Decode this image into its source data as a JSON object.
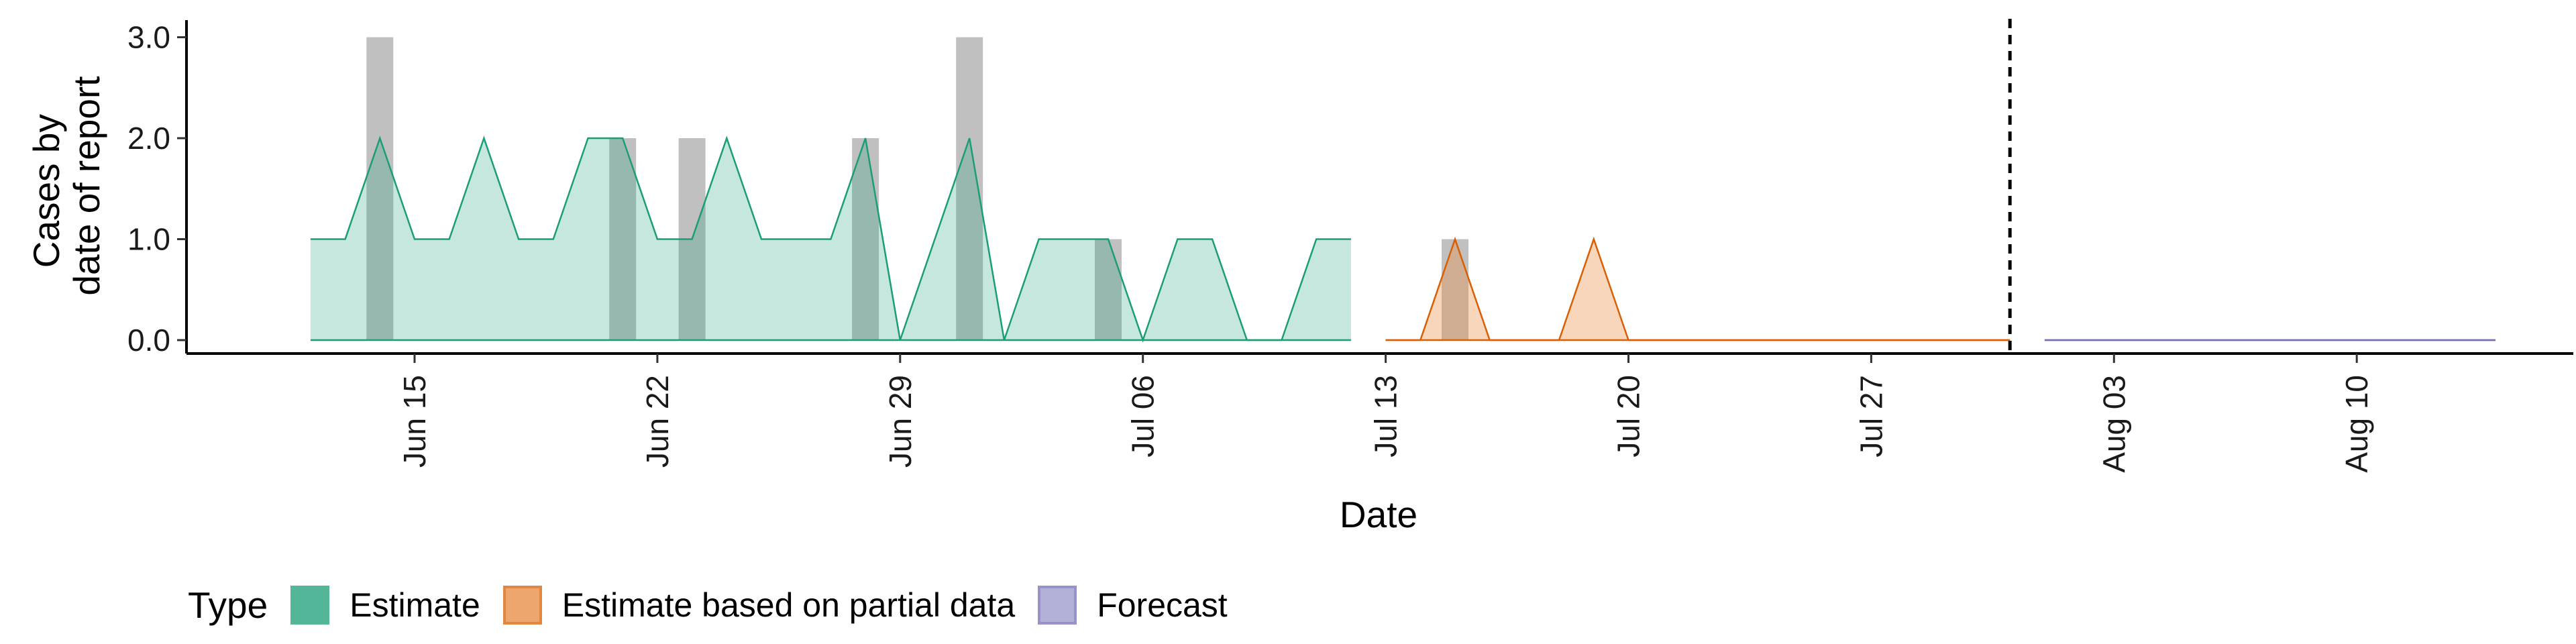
{
  "chart_data": {
    "type": "area",
    "xlabel": "Date",
    "ylabel_lines": [
      "Cases by",
      "date of report"
    ],
    "x_ticks": [
      {
        "date": "2020-06-15",
        "label": "Jun 15"
      },
      {
        "date": "2020-06-22",
        "label": "Jun 22"
      },
      {
        "date": "2020-06-29",
        "label": "Jun 29"
      },
      {
        "date": "2020-07-06",
        "label": "Jul 06"
      },
      {
        "date": "2020-07-13",
        "label": "Jul 13"
      },
      {
        "date": "2020-07-20",
        "label": "Jul 20"
      },
      {
        "date": "2020-07-27",
        "label": "Jul 27"
      },
      {
        "date": "2020-08-03",
        "label": "Aug 03"
      },
      {
        "date": "2020-08-10",
        "label": "Aug 10"
      }
    ],
    "y_ticks": [
      0,
      1,
      2,
      3
    ],
    "y_tick_labels": [
      "0.0",
      "1.0",
      "2.0",
      "3.0"
    ],
    "xlim": [
      "2020-06-08",
      "2020-08-15"
    ],
    "ylim": [
      0,
      3
    ],
    "cutoff_date": "2020-07-31",
    "reported_cases": [
      {
        "date": "2020-06-14",
        "cases": 3
      },
      {
        "date": "2020-06-21",
        "cases": 2
      },
      {
        "date": "2020-06-23",
        "cases": 2
      },
      {
        "date": "2020-06-28",
        "cases": 2
      },
      {
        "date": "2020-07-01",
        "cases": 3
      },
      {
        "date": "2020-07-05",
        "cases": 1
      },
      {
        "date": "2020-07-15",
        "cases": 1
      }
    ],
    "series": [
      {
        "name": "Estimate",
        "color": "#1b9e77",
        "fill": "#1b9e77",
        "x": [
          "2020-06-12",
          "2020-06-13",
          "2020-06-14",
          "2020-06-15",
          "2020-06-16",
          "2020-06-17",
          "2020-06-18",
          "2020-06-19",
          "2020-06-20",
          "2020-06-21",
          "2020-06-22",
          "2020-06-23",
          "2020-06-24",
          "2020-06-25",
          "2020-06-26",
          "2020-06-27",
          "2020-06-28",
          "2020-06-29",
          "2020-06-30",
          "2020-07-01",
          "2020-07-02",
          "2020-07-03",
          "2020-07-04",
          "2020-07-05",
          "2020-07-06",
          "2020-07-07",
          "2020-07-08",
          "2020-07-09",
          "2020-07-10",
          "2020-07-11",
          "2020-07-12"
        ],
        "y": [
          1,
          1,
          2,
          1,
          1,
          2,
          1,
          1,
          2,
          2,
          1,
          1,
          2,
          1,
          1,
          1,
          2,
          0,
          1,
          2,
          0,
          1,
          1,
          1,
          0,
          1,
          1,
          0,
          0,
          1,
          1
        ]
      },
      {
        "name": "Estimate based on partial data",
        "color": "#d95f02",
        "fill": "#e8893d",
        "x": [
          "2020-07-13",
          "2020-07-14",
          "2020-07-15",
          "2020-07-16",
          "2020-07-17",
          "2020-07-18",
          "2020-07-19",
          "2020-07-20",
          "2020-07-21",
          "2020-07-22",
          "2020-07-23",
          "2020-07-24",
          "2020-07-25",
          "2020-07-26",
          "2020-07-27",
          "2020-07-28",
          "2020-07-29",
          "2020-07-30",
          "2020-07-31"
        ],
        "y": [
          0,
          0,
          1,
          0,
          0,
          0,
          1,
          0,
          0,
          0,
          0,
          0,
          0,
          0,
          0,
          0,
          0,
          0,
          0
        ]
      },
      {
        "name": "Forecast",
        "color": "#7570b3",
        "fill": "#9c98cc",
        "x": [
          "2020-08-01",
          "2020-08-14"
        ],
        "y": [
          0,
          0
        ]
      }
    ],
    "legend": {
      "title": "Type",
      "position": "bottom",
      "entries": [
        "Estimate",
        "Estimate based on partial data",
        "Forecast"
      ]
    }
  }
}
